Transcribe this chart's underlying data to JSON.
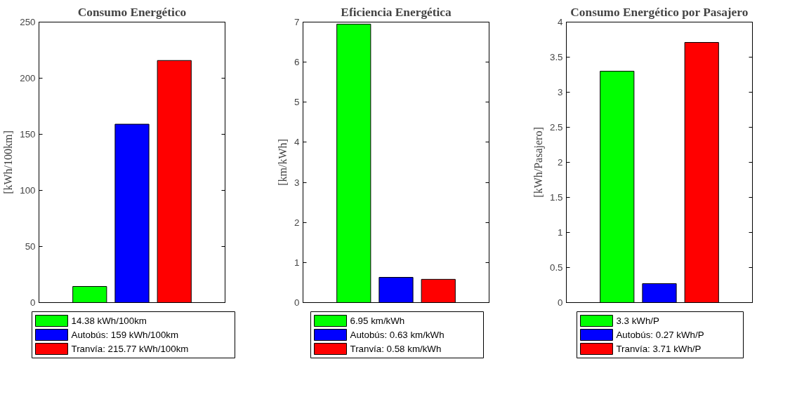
{
  "chart_data": [
    {
      "type": "bar",
      "title": "Consumo Energético",
      "ylabel": "[kWh/100km]",
      "categories": [
        null,
        null,
        null
      ],
      "stacked": true,
      "ylim": [
        0,
        250
      ],
      "yticks": [
        0,
        50,
        100,
        150,
        200,
        250
      ],
      "grid": false,
      "legend": "bottom",
      "tick_labels": "y",
      "series": [
        {
          "name": "14.38 kWh/100km",
          "color": "#00ff00",
          "values": [
            14.38,
            null,
            null
          ]
        },
        {
          "name": "Autobús: 159 kWh/100km",
          "color": "#0000ff",
          "values": [
            null,
            159,
            null
          ]
        },
        {
          "name": "Tranvía: 215.77 kWh/100km",
          "color": "#ff0000",
          "values": [
            null,
            null,
            215.77
          ]
        }
      ]
    },
    {
      "type": "bar",
      "title": "Eficiencia Energética",
      "ylabel": "[km/kWh]",
      "categories": [
        null,
        null,
        null
      ],
      "stacked": true,
      "ylim": [
        0,
        7
      ],
      "yticks": [
        0,
        1,
        2,
        3,
        4,
        5,
        6,
        7
      ],
      "grid": false,
      "legend": "bottom",
      "tick_labels": "y",
      "series": [
        {
          "name": "6.95 km/kWh",
          "color": "#00ff00",
          "values": [
            6.95,
            null,
            null
          ]
        },
        {
          "name": "Autobús: 0.63 km/kWh",
          "color": "#0000ff",
          "values": [
            null,
            0.63,
            null
          ]
        },
        {
          "name": "Tranvía: 0.58 km/kWh",
          "color": "#ff0000",
          "values": [
            null,
            null,
            0.58
          ]
        }
      ]
    },
    {
      "type": "bar",
      "title": "Consumo Energético por Pasajero",
      "ylabel": "[kWh/Pasajero]",
      "categories": [
        null,
        null,
        null
      ],
      "stacked": true,
      "ylim": [
        0,
        4
      ],
      "yticks": [
        0,
        0.5,
        1,
        1.5,
        2,
        2.5,
        3,
        3.5,
        4
      ],
      "grid": false,
      "legend": "bottom",
      "tick_labels": "y",
      "series": [
        {
          "name": "3.3 kWh/P",
          "color": "#00ff00",
          "values": [
            3.3,
            null,
            null
          ]
        },
        {
          "name": "Autobús: 0.27 kWh/P",
          "color": "#0000ff",
          "values": [
            null,
            0.27,
            null
          ]
        },
        {
          "name": "Tranvía: 3.71 kWh/P",
          "color": "#ff0000",
          "values": [
            null,
            null,
            3.71
          ]
        }
      ]
    }
  ]
}
